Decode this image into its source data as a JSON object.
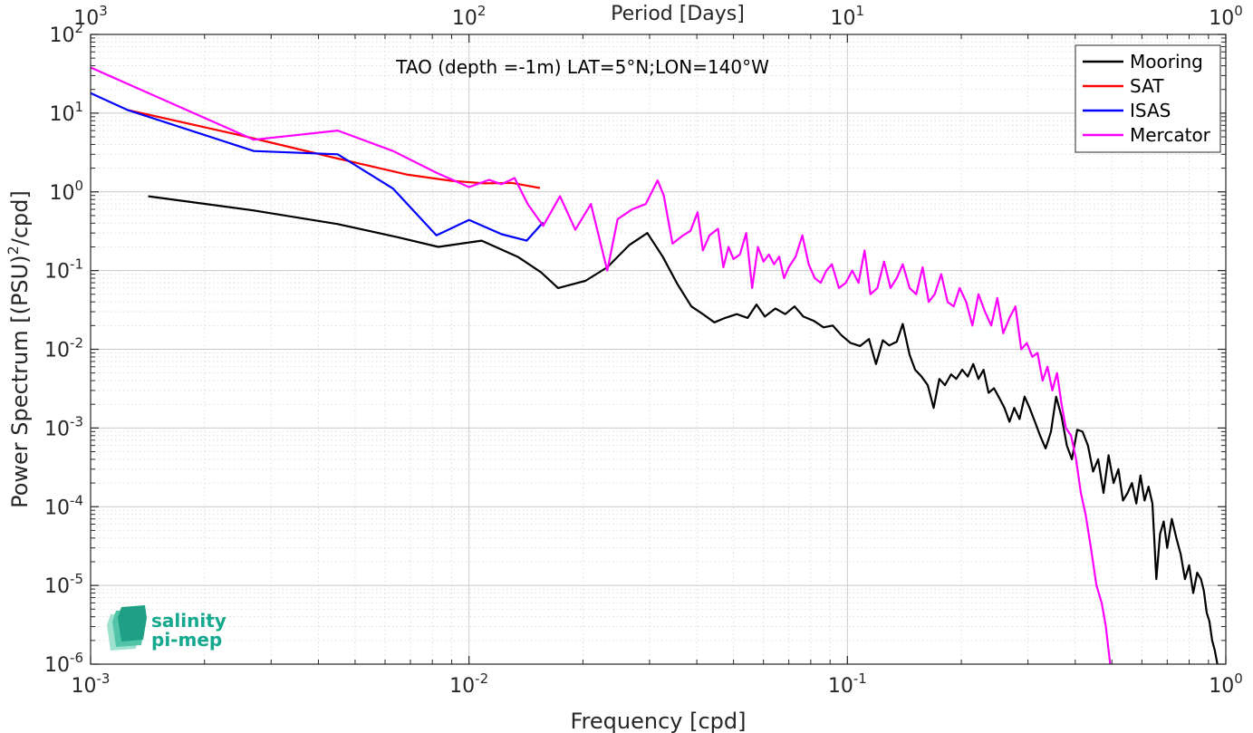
{
  "chart_data": {
    "type": "line",
    "title": "TAO (depth =-1m) LAT=5°N;LON=140°W",
    "xlabel": "Frequency [cpd]",
    "ylabel_main": "Power Spectrum [(PSU)",
    "ylabel_sup": "2",
    "ylabel_tail": "/cpd]",
    "x2label": "Period [Days]",
    "xscale": "log",
    "yscale": "log",
    "xlim": [
      0.001,
      1
    ],
    "ylim": [
      1e-06,
      100
    ],
    "grid": true,
    "legend_position": "top-right",
    "x_ticks": [
      {
        "base": "10",
        "exp": "-3"
      },
      {
        "base": "10",
        "exp": "-2"
      },
      {
        "base": "10",
        "exp": "-1"
      },
      {
        "base": "10",
        "exp": "0"
      }
    ],
    "x2_ticks": [
      {
        "base": "10",
        "exp": "3"
      },
      {
        "base": "10",
        "exp": "2"
      },
      {
        "base": "10",
        "exp": "1"
      },
      {
        "base": "10",
        "exp": "0"
      }
    ],
    "y_ticks": [
      {
        "base": "10",
        "exp": "-6"
      },
      {
        "base": "10",
        "exp": "-5"
      },
      {
        "base": "10",
        "exp": "-4"
      },
      {
        "base": "10",
        "exp": "-3"
      },
      {
        "base": "10",
        "exp": "-2"
      },
      {
        "base": "10",
        "exp": "-1"
      },
      {
        "base": "10",
        "exp": "0"
      },
      {
        "base": "10",
        "exp": "1"
      },
      {
        "base": "10",
        "exp": "2"
      }
    ],
    "series": [
      {
        "name": "Mooring",
        "color": "#000000",
        "x": [
          0.00142,
          0.0027,
          0.0045,
          0.0065,
          0.0083,
          0.0108,
          0.0135,
          0.0155,
          0.0172,
          0.0203,
          0.0232,
          0.0265,
          0.0296,
          0.0325,
          0.0355,
          0.0387,
          0.0415,
          0.0445,
          0.0475,
          0.051,
          0.0545,
          0.0575,
          0.0605,
          0.0645,
          0.0685,
          0.0725,
          0.0765,
          0.0815,
          0.0865,
          0.0915,
          0.0965,
          0.102,
          0.108,
          0.114,
          0.119,
          0.124,
          0.129,
          0.135,
          0.14,
          0.146,
          0.151,
          0.157,
          0.163,
          0.169,
          0.175,
          0.181,
          0.188,
          0.194,
          0.201,
          0.208,
          0.215,
          0.222,
          0.229,
          0.236,
          0.244,
          0.252,
          0.26,
          0.268,
          0.276,
          0.285,
          0.294,
          0.303,
          0.313,
          0.323,
          0.334,
          0.345,
          0.356,
          0.368,
          0.38,
          0.392,
          0.405,
          0.418,
          0.432,
          0.446,
          0.46,
          0.475,
          0.49,
          0.505,
          0.52,
          0.535,
          0.55,
          0.565,
          0.58,
          0.595,
          0.61,
          0.625,
          0.64,
          0.655,
          0.67,
          0.685,
          0.7,
          0.72,
          0.74,
          0.76,
          0.78,
          0.8,
          0.82,
          0.84,
          0.86,
          0.875,
          0.89,
          0.905,
          0.92,
          0.935,
          0.95
        ],
        "y": [
          0.88,
          0.58,
          0.39,
          0.265,
          0.2,
          0.24,
          0.148,
          0.095,
          0.06,
          0.074,
          0.11,
          0.21,
          0.3,
          0.15,
          0.068,
          0.035,
          0.028,
          0.022,
          0.025,
          0.028,
          0.025,
          0.037,
          0.026,
          0.033,
          0.028,
          0.035,
          0.026,
          0.023,
          0.019,
          0.02,
          0.015,
          0.012,
          0.011,
          0.0135,
          0.0065,
          0.013,
          0.0112,
          0.0125,
          0.021,
          0.0085,
          0.0055,
          0.0045,
          0.0035,
          0.0018,
          0.0042,
          0.0035,
          0.0048,
          0.0042,
          0.0055,
          0.0045,
          0.0065,
          0.0042,
          0.0055,
          0.0028,
          0.0032,
          0.0024,
          0.0018,
          0.0012,
          0.0018,
          0.0013,
          0.0025,
          0.0018,
          0.0012,
          0.0008,
          0.00055,
          0.0009,
          0.0025,
          0.0014,
          0.0006,
          0.0004,
          0.00095,
          0.0009,
          0.0006,
          0.00028,
          0.0004,
          0.00015,
          0.00045,
          0.0002,
          0.0003,
          0.00012,
          0.00015,
          0.0002,
          0.00011,
          0.00025,
          0.00012,
          0.00018,
          0.00011,
          1.2e-05,
          4.5e-05,
          6.5e-05,
          3e-05,
          7e-05,
          4e-05,
          2.5e-05,
          1.2e-05,
          1.8e-05,
          8e-06,
          1.45e-05,
          1.2e-05,
          8.5e-06,
          4.5e-06,
          3.5e-06,
          2e-06,
          1.5e-06,
          1e-06
        ]
      },
      {
        "name": "SAT",
        "color": "#ff0000",
        "x": [
          0.00125,
          0.0025,
          0.0045,
          0.0069,
          0.009,
          0.011,
          0.013,
          0.0154
        ],
        "y": [
          11.0,
          5.2,
          2.65,
          1.65,
          1.38,
          1.28,
          1.3,
          1.12
        ]
      },
      {
        "name": "ISAS",
        "color": "#0000ff",
        "x": [
          0.001,
          0.00125,
          0.0027,
          0.0045,
          0.0063,
          0.0082,
          0.01,
          0.0122,
          0.0142,
          0.0157
        ],
        "y": [
          18.0,
          11.0,
          3.3,
          3.0,
          1.1,
          0.28,
          0.44,
          0.29,
          0.24,
          0.41
        ]
      },
      {
        "name": "Mercator",
        "color": "#ff00ff",
        "x": [
          0.001,
          0.0027,
          0.0045,
          0.0063,
          0.0082,
          0.01,
          0.0113,
          0.0122,
          0.0132,
          0.0143,
          0.0157,
          0.0174,
          0.0191,
          0.021,
          0.0232,
          0.0247,
          0.027,
          0.0293,
          0.0315,
          0.0327,
          0.0345,
          0.0368,
          0.0385,
          0.0402,
          0.0415,
          0.0432,
          0.0455,
          0.047,
          0.0485,
          0.05,
          0.052,
          0.054,
          0.056,
          0.058,
          0.06,
          0.062,
          0.064,
          0.066,
          0.068,
          0.07,
          0.073,
          0.076,
          0.079,
          0.082,
          0.085,
          0.088,
          0.091,
          0.095,
          0.099,
          0.103,
          0.107,
          0.111,
          0.115,
          0.12,
          0.125,
          0.13,
          0.135,
          0.14,
          0.146,
          0.152,
          0.158,
          0.164,
          0.17,
          0.177,
          0.184,
          0.191,
          0.198,
          0.206,
          0.214,
          0.222,
          0.231,
          0.24,
          0.249,
          0.258,
          0.268,
          0.278,
          0.288,
          0.298,
          0.308,
          0.318,
          0.328,
          0.338,
          0.348,
          0.358,
          0.368,
          0.378,
          0.39,
          0.402,
          0.414,
          0.426,
          0.44,
          0.455,
          0.47,
          0.482,
          0.49,
          0.495
        ],
        "y": [
          38.0,
          4.6,
          6.0,
          3.3,
          1.75,
          1.15,
          1.42,
          1.25,
          1.5,
          0.7,
          0.37,
          0.88,
          0.33,
          0.7,
          0.1,
          0.45,
          0.6,
          0.7,
          1.4,
          0.9,
          0.22,
          0.28,
          0.32,
          0.55,
          0.18,
          0.28,
          0.34,
          0.11,
          0.2,
          0.14,
          0.16,
          0.3,
          0.06,
          0.2,
          0.13,
          0.16,
          0.12,
          0.15,
          0.08,
          0.11,
          0.15,
          0.28,
          0.12,
          0.08,
          0.07,
          0.1,
          0.12,
          0.06,
          0.07,
          0.1,
          0.07,
          0.18,
          0.05,
          0.06,
          0.13,
          0.06,
          0.08,
          0.12,
          0.06,
          0.05,
          0.11,
          0.04,
          0.05,
          0.09,
          0.04,
          0.035,
          0.06,
          0.04,
          0.02,
          0.05,
          0.03,
          0.02,
          0.045,
          0.016,
          0.025,
          0.035,
          0.01,
          0.012,
          0.008,
          0.009,
          0.004,
          0.006,
          0.003,
          0.005,
          0.002,
          0.001,
          0.0008,
          0.0004,
          0.00015,
          8e-05,
          3e-05,
          1e-05,
          6e-06,
          3e-06,
          1.5e-06,
          1e-06
        ]
      }
    ],
    "logo": {
      "line1": "salinity",
      "line2": "pi-mep"
    }
  }
}
